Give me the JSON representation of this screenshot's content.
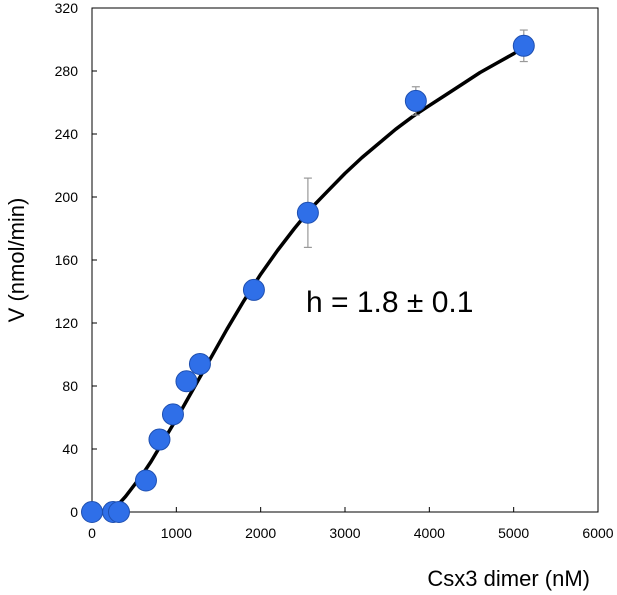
{
  "chart_data": {
    "type": "scatter",
    "xlabel": "Csx3 dimer (nM)",
    "ylabel": "V (nmol/min)",
    "xlim": [
      0,
      6000
    ],
    "ylim": [
      0,
      320
    ],
    "xticks": [
      0,
      1000,
      2000,
      3000,
      4000,
      5000,
      6000
    ],
    "yticks": [
      0,
      40,
      80,
      120,
      160,
      200,
      240,
      280,
      320
    ],
    "grid": false,
    "annotation": "h = 1.8 ± 0.1",
    "colors": {
      "point": "#2f6fe8",
      "point_edge": "#1e4fb0",
      "fit": "#000000",
      "error_bar": "#999999"
    },
    "series": [
      {
        "points": [
          {
            "x": 0,
            "y": 0
          },
          {
            "x": 250,
            "y": 0
          },
          {
            "x": 320,
            "y": 0
          },
          {
            "x": 640,
            "y": 20
          },
          {
            "x": 800,
            "y": 46
          },
          {
            "x": 960,
            "y": 62
          },
          {
            "x": 1120,
            "y": 83
          },
          {
            "x": 1280,
            "y": 94
          },
          {
            "x": 1920,
            "y": 141
          },
          {
            "x": 2560,
            "y": 190,
            "err": 22
          },
          {
            "x": 3840,
            "y": 261,
            "err": 9
          },
          {
            "x": 5120,
            "y": 296,
            "err": 10
          }
        ]
      }
    ],
    "fit_curve": [
      [
        200,
        0
      ],
      [
        300,
        4
      ],
      [
        400,
        10
      ],
      [
        500,
        17
      ],
      [
        600,
        24
      ],
      [
        700,
        32
      ],
      [
        800,
        41
      ],
      [
        1000,
        59
      ],
      [
        1200,
        78
      ],
      [
        1400,
        97
      ],
      [
        1600,
        116
      ],
      [
        1800,
        134
      ],
      [
        2000,
        151
      ],
      [
        2200,
        166
      ],
      [
        2400,
        180
      ],
      [
        2600,
        193
      ],
      [
        2800,
        204
      ],
      [
        3000,
        215
      ],
      [
        3200,
        225
      ],
      [
        3400,
        234
      ],
      [
        3600,
        243
      ],
      [
        3800,
        251
      ],
      [
        4000,
        258
      ],
      [
        4200,
        265
      ],
      [
        4400,
        272
      ],
      [
        4600,
        279
      ],
      [
        4800,
        285
      ],
      [
        5000,
        291
      ],
      [
        5120,
        295
      ]
    ]
  }
}
